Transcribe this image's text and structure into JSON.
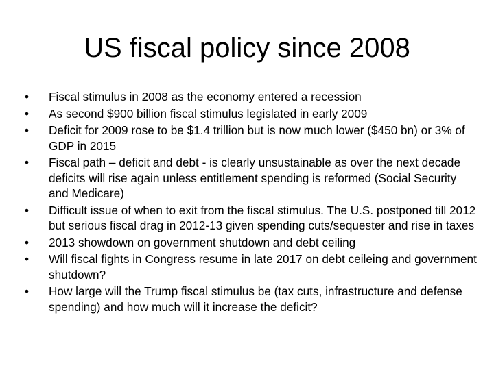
{
  "slide": {
    "title": "US fiscal policy since 2008",
    "bullet_symbol": "•",
    "bullets": [
      "Fiscal stimulus in 2008 as the economy entered a recession",
      "As second $900 billion fiscal stimulus legislated in early 2009",
      "Deficit for 2009 rose to be $1.4 trillion but is now much lower ($450 bn) or 3% of GDP in 2015",
      "Fiscal path – deficit and debt - is clearly unsustainable as over the next decade deficits will rise again unless entitlement spending is reformed (Social Security and Medicare)",
      "Difficult issue of when to exit from the fiscal stimulus. The U.S. postponed till 2012 but serious fiscal drag in 2012-13 given spending cuts/sequester and rise in taxes",
      "2013 showdown on government shutdown and debt ceiling",
      "Will fiscal fights in Congress resume in late 2017 on debt ceileing and government shutdown?",
      "How large will the Trump fiscal stimulus be (tax cuts, infrastructure and defense spending) and how much will it increase the deficit?"
    ]
  }
}
